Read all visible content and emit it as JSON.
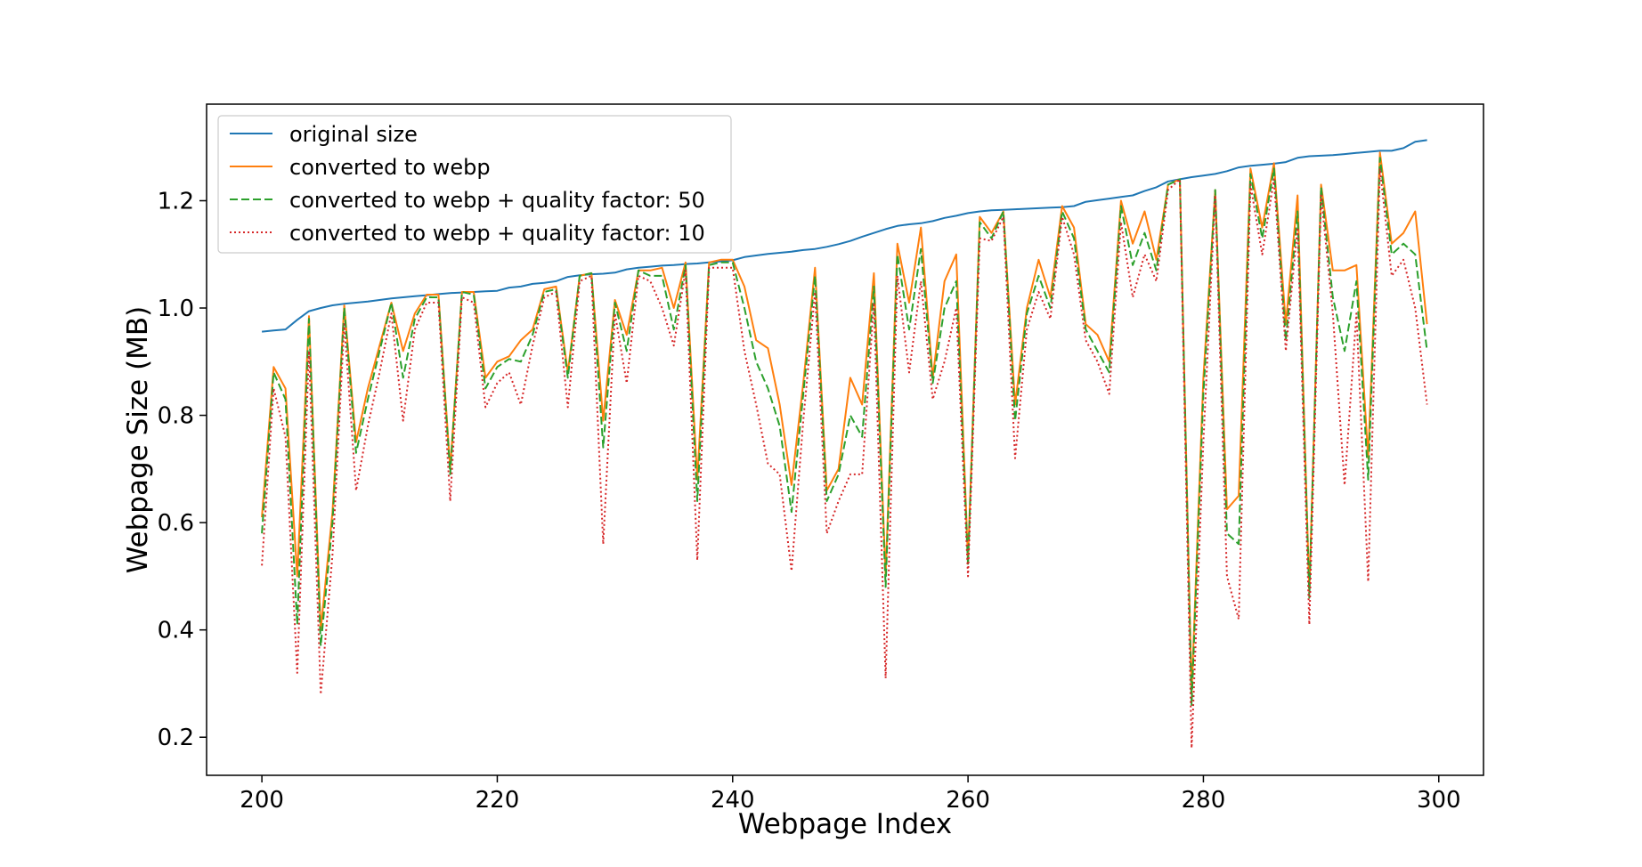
{
  "chart_data": {
    "type": "line",
    "title": "",
    "xlabel": "Webpage Index",
    "ylabel": "Webpage Size (MB)",
    "xlim": [
      195.3,
      303.8
    ],
    "ylim": [
      0.129,
      1.38
    ],
    "xticks": [
      200,
      220,
      240,
      260,
      280,
      300
    ],
    "yticks": [
      0.2,
      0.4,
      0.6,
      0.8,
      1.0,
      1.2
    ],
    "xtick_labels": [
      "200",
      "220",
      "240",
      "260",
      "280",
      "300"
    ],
    "ytick_labels": [
      "0.2",
      "0.4",
      "0.6",
      "0.8",
      "1.0",
      "1.2"
    ],
    "legend_position": "top-left",
    "grid": false,
    "x": [
      200,
      201,
      202,
      203,
      204,
      205,
      206,
      207,
      208,
      209,
      210,
      211,
      212,
      213,
      214,
      215,
      216,
      217,
      218,
      219,
      220,
      221,
      222,
      223,
      224,
      225,
      226,
      227,
      228,
      229,
      230,
      231,
      232,
      233,
      234,
      235,
      236,
      237,
      238,
      239,
      240,
      241,
      242,
      243,
      244,
      245,
      246,
      247,
      248,
      249,
      250,
      251,
      252,
      253,
      254,
      255,
      256,
      257,
      258,
      259,
      260,
      261,
      262,
      263,
      264,
      265,
      266,
      267,
      268,
      269,
      270,
      271,
      272,
      273,
      274,
      275,
      276,
      277,
      278,
      279,
      280,
      281,
      282,
      283,
      284,
      285,
      286,
      287,
      288,
      289,
      290,
      291,
      292,
      293,
      294,
      295,
      296,
      297,
      298,
      299
    ],
    "series": [
      {
        "name": "original size",
        "color": "#1f77b4",
        "dash": "solid",
        "values": [
          0.956,
          0.958,
          0.96,
          0.978,
          0.994,
          1.0,
          1.005,
          1.008,
          1.01,
          1.012,
          1.015,
          1.018,
          1.02,
          1.022,
          1.024,
          1.026,
          1.028,
          1.029,
          1.03,
          1.031,
          1.032,
          1.038,
          1.04,
          1.045,
          1.047,
          1.05,
          1.058,
          1.061,
          1.063,
          1.064,
          1.066,
          1.072,
          1.075,
          1.077,
          1.079,
          1.08,
          1.082,
          1.083,
          1.085,
          1.087,
          1.089,
          1.095,
          1.098,
          1.101,
          1.103,
          1.105,
          1.108,
          1.11,
          1.114,
          1.119,
          1.125,
          1.133,
          1.14,
          1.147,
          1.153,
          1.156,
          1.158,
          1.162,
          1.168,
          1.172,
          1.177,
          1.18,
          1.182,
          1.183,
          1.184,
          1.185,
          1.186,
          1.187,
          1.188,
          1.19,
          1.198,
          1.201,
          1.204,
          1.207,
          1.21,
          1.218,
          1.225,
          1.236,
          1.24,
          1.244,
          1.247,
          1.25,
          1.255,
          1.262,
          1.265,
          1.267,
          1.269,
          1.272,
          1.28,
          1.283,
          1.284,
          1.285,
          1.287,
          1.289,
          1.291,
          1.293,
          1.293,
          1.298,
          1.31,
          1.313
        ]
      },
      {
        "name": "converted to webp",
        "color": "#ff7f0e",
        "dash": "solid",
        "values": [
          0.61,
          0.89,
          0.85,
          0.5,
          0.985,
          0.4,
          0.62,
          1.005,
          0.75,
          0.85,
          0.93,
          1.01,
          0.92,
          0.99,
          1.025,
          1.025,
          0.7,
          1.03,
          1.03,
          0.87,
          0.9,
          0.91,
          0.94,
          0.96,
          1.035,
          1.04,
          0.88,
          1.06,
          1.065,
          0.79,
          1.015,
          0.95,
          1.07,
          1.07,
          1.075,
          1.0,
          1.085,
          0.68,
          1.085,
          1.09,
          1.09,
          1.04,
          0.94,
          0.925,
          0.82,
          0.67,
          0.86,
          1.075,
          0.66,
          0.7,
          0.87,
          0.82,
          1.065,
          0.5,
          1.12,
          1.01,
          1.15,
          0.87,
          1.05,
          1.1,
          0.53,
          1.17,
          1.14,
          1.18,
          0.82,
          1.0,
          1.09,
          1.02,
          1.19,
          1.15,
          0.97,
          0.95,
          0.9,
          1.2,
          1.12,
          1.18,
          1.09,
          1.23,
          1.24,
          0.28,
          0.87,
          1.22,
          0.625,
          0.65,
          1.26,
          1.15,
          1.27,
          0.97,
          1.21,
          0.47,
          1.23,
          1.07,
          1.07,
          1.08,
          0.72,
          1.29,
          1.12,
          1.14,
          1.18,
          0.97
        ]
      },
      {
        "name": "converted to webp + quality factor: 50",
        "color": "#2ca02c",
        "dash": "dashed",
        "values": [
          0.58,
          0.88,
          0.83,
          0.41,
          0.98,
          0.37,
          0.6,
          1.0,
          0.73,
          0.83,
          0.92,
          1.01,
          0.87,
          0.98,
          1.02,
          1.02,
          0.69,
          1.03,
          1.025,
          0.85,
          0.89,
          0.905,
          0.9,
          0.95,
          1.03,
          1.035,
          0.87,
          1.06,
          1.065,
          0.74,
          1.01,
          0.92,
          1.07,
          1.06,
          1.06,
          0.96,
          1.08,
          0.64,
          1.08,
          1.085,
          1.085,
          1.0,
          0.9,
          0.85,
          0.78,
          0.62,
          0.84,
          1.06,
          0.64,
          0.69,
          0.8,
          0.76,
          1.04,
          0.48,
          1.1,
          0.96,
          1.11,
          0.86,
          1.0,
          1.05,
          0.52,
          1.16,
          1.13,
          1.18,
          0.79,
          0.99,
          1.06,
          1.0,
          1.18,
          1.13,
          0.96,
          0.92,
          0.88,
          1.19,
          1.08,
          1.14,
          1.07,
          1.23,
          1.24,
          0.26,
          0.84,
          1.22,
          0.58,
          0.56,
          1.25,
          1.13,
          1.26,
          0.94,
          1.18,
          0.46,
          1.225,
          1.02,
          0.92,
          1.05,
          0.68,
          1.28,
          1.1,
          1.12,
          1.1,
          0.92
        ]
      },
      {
        "name": "converted to webp + quality factor: 10",
        "color": "#d62728",
        "dash": "dotted",
        "values": [
          0.52,
          0.85,
          0.76,
          0.32,
          0.92,
          0.28,
          0.54,
          0.97,
          0.66,
          0.78,
          0.88,
          0.99,
          0.79,
          0.96,
          1.01,
          1.01,
          0.64,
          1.02,
          1.01,
          0.815,
          0.86,
          0.88,
          0.82,
          0.93,
          1.02,
          1.03,
          0.815,
          1.05,
          1.06,
          0.56,
          0.99,
          0.86,
          1.06,
          1.05,
          1.0,
          0.93,
          1.07,
          0.53,
          1.075,
          1.075,
          1.075,
          0.92,
          0.82,
          0.71,
          0.69,
          0.51,
          0.79,
          1.03,
          0.58,
          0.64,
          0.69,
          0.69,
          1.01,
          0.31,
          1.06,
          0.88,
          1.05,
          0.83,
          0.9,
          1.0,
          0.5,
          1.13,
          1.125,
          1.17,
          0.72,
          0.96,
          1.03,
          0.98,
          1.17,
          1.1,
          0.94,
          0.9,
          0.84,
          1.16,
          1.02,
          1.1,
          1.05,
          1.22,
          1.24,
          0.18,
          0.75,
          1.21,
          0.5,
          0.42,
          1.23,
          1.1,
          1.24,
          0.92,
          1.15,
          0.41,
          1.21,
          0.99,
          0.67,
          0.99,
          0.49,
          1.26,
          1.06,
          1.09,
          1.0,
          0.82
        ]
      }
    ]
  }
}
